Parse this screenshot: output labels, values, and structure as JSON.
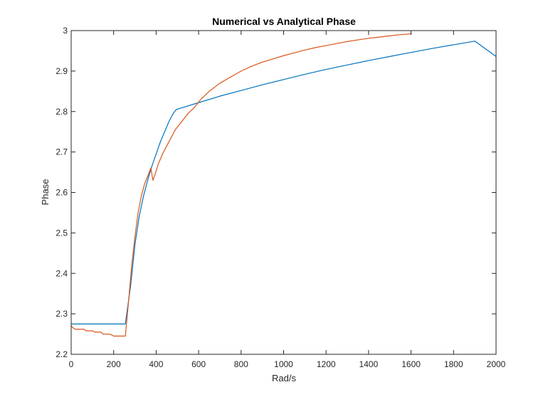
{
  "chart_data": {
    "type": "line",
    "title": "Numerical vs Analytical Phase",
    "xlabel": "Rad/s",
    "ylabel": "Phase",
    "xlim": [
      0,
      2000
    ],
    "ylim": [
      2.2,
      3.0
    ],
    "x_ticks": [
      0,
      200,
      400,
      600,
      800,
      1000,
      1200,
      1400,
      1600,
      1800,
      2000
    ],
    "y_ticks": [
      2.2,
      2.3,
      2.4,
      2.5,
      2.6,
      2.7,
      2.8,
      2.9,
      3.0
    ],
    "x_tick_labels": [
      "0",
      "200",
      "400",
      "600",
      "800",
      "1000",
      "1200",
      "1400",
      "1600",
      "1800",
      "2000"
    ],
    "y_tick_labels": [
      "2.2",
      "2.3",
      "2.4",
      "2.5",
      "2.6",
      "2.7",
      "2.8",
      "2.9",
      "3"
    ],
    "grid": false,
    "legend": "none",
    "series": [
      {
        "color": "#0072BD",
        "x": [
          0,
          255,
          280,
          300,
          320,
          340,
          360,
          380,
          400,
          420,
          440,
          460,
          480,
          495,
          600,
          700,
          800,
          900,
          1000,
          1100,
          1200,
          1300,
          1400,
          1500,
          1600,
          1700,
          1800,
          1900,
          2000
        ],
        "y": [
          2.275,
          2.275,
          2.37,
          2.47,
          2.54,
          2.59,
          2.63,
          2.665,
          2.695,
          2.725,
          2.75,
          2.775,
          2.795,
          2.805,
          2.822,
          2.838,
          2.852,
          2.866,
          2.879,
          2.892,
          2.904,
          2.915,
          2.926,
          2.936,
          2.946,
          2.956,
          2.965,
          2.974,
          2.936
        ]
      },
      {
        "color": "#D95319",
        "x": [
          0,
          10,
          20,
          60,
          70,
          100,
          110,
          140,
          150,
          180,
          190,
          200,
          210,
          240,
          255,
          270,
          285,
          300,
          315,
          330,
          345,
          360,
          375,
          385,
          395,
          410,
          430,
          450,
          470,
          490,
          520,
          550,
          580,
          610,
          650,
          700,
          750,
          800,
          850,
          900,
          950,
          1000,
          1050,
          1100,
          1150,
          1200,
          1250,
          1300,
          1350,
          1400,
          1450,
          1500,
          1550,
          1600
        ],
        "y": [
          2.27,
          2.265,
          2.262,
          2.262,
          2.258,
          2.258,
          2.255,
          2.255,
          2.25,
          2.25,
          2.248,
          2.245,
          2.245,
          2.245,
          2.245,
          2.33,
          2.42,
          2.49,
          2.55,
          2.59,
          2.62,
          2.64,
          2.66,
          2.63,
          2.645,
          2.67,
          2.695,
          2.715,
          2.735,
          2.755,
          2.775,
          2.795,
          2.81,
          2.83,
          2.85,
          2.87,
          2.885,
          2.9,
          2.912,
          2.922,
          2.93,
          2.938,
          2.945,
          2.952,
          2.958,
          2.963,
          2.968,
          2.973,
          2.977,
          2.981,
          2.984,
          2.987,
          2.99,
          2.992
        ]
      }
    ]
  }
}
